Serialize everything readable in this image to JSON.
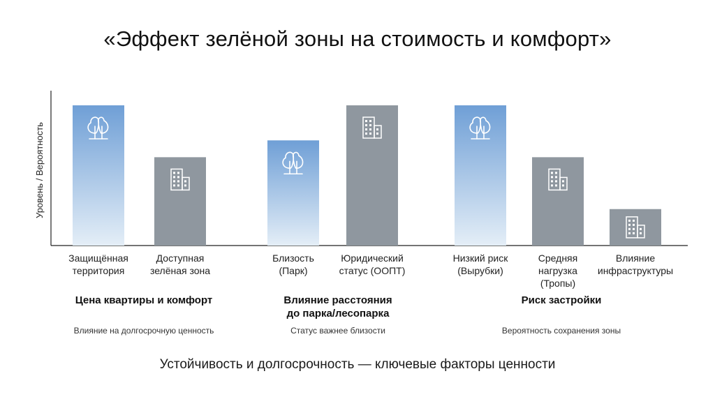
{
  "title": "«Эффект зелёной зоны на стоимость и комфорт»",
  "footer": "Устойчивость и долгосрочность — ключевые факторы ценности",
  "chart_data": {
    "type": "bar",
    "ylabel": "Уровень / Вероятность",
    "ylim": [
      0,
      100
    ],
    "colors": {
      "green": "#6f9fd6",
      "green_bottom": "#e4eef7",
      "building": "#8f979f",
      "axis": "#222222"
    },
    "groups": [
      {
        "title": [
          "Цена квартиры и комфорт"
        ],
        "subtitle": "Влияние на долгосрочную ценность",
        "bars": [
          {
            "label": [
              "Защищённая",
              "территория"
            ],
            "value": 100,
            "kind": "green",
            "icon": "tree-icon"
          },
          {
            "label": [
              "Доступная",
              "зелёная зона"
            ],
            "value": 63,
            "kind": "building",
            "icon": "building-icon"
          }
        ]
      },
      {
        "title": [
          "Влияние расстояния",
          "до парка/лесопарка"
        ],
        "subtitle": "Статус важнее близости",
        "bars": [
          {
            "label": [
              "Близость",
              "(Парк)"
            ],
            "value": 75,
            "kind": "green",
            "icon": "tree-icon"
          },
          {
            "label": [
              "Юридический",
              "статус (ООПТ)"
            ],
            "value": 100,
            "kind": "building",
            "icon": "building-icon"
          }
        ]
      },
      {
        "title": [
          "Риск застройки"
        ],
        "subtitle": "Вероятность сохранения зоны",
        "bars": [
          {
            "label": [
              "Низкий риск",
              "(Вырубки)"
            ],
            "value": 100,
            "kind": "green",
            "icon": "tree-icon"
          },
          {
            "label": [
              "Средняя",
              "нагрузка",
              "(Тропы)"
            ],
            "value": 63,
            "kind": "building",
            "icon": "building-icon"
          },
          {
            "label": [
              "Влияние",
              "инфраструктуры"
            ],
            "value": 26,
            "kind": "building",
            "icon": "building-icon"
          }
        ]
      }
    ]
  }
}
